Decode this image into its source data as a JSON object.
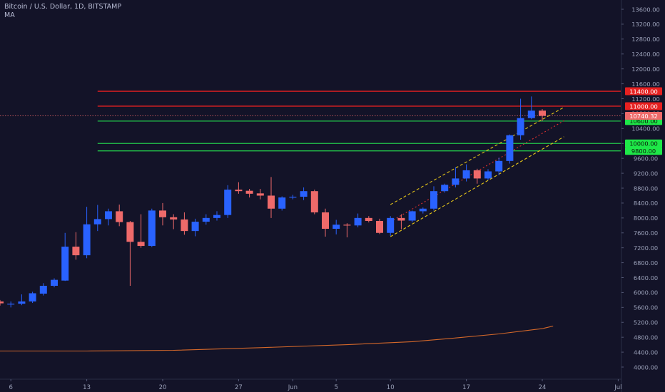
{
  "chart_header": {
    "title": "Bitcoin / U.S. Dollar, 1D, BITSTAMP",
    "indicator": "MA"
  },
  "colors": {
    "background": "#131328",
    "bullish": "#2962ff",
    "bearish": "#ef6a6a",
    "resistance": "#e62020",
    "support": "#22c44a",
    "channel": "#e6c619",
    "channel_mid": "#e03030",
    "ma": "#d4682a",
    "axis_text": "#9aa0b8"
  },
  "chart_data": {
    "type": "candlestick",
    "title": "Bitcoin / U.S. Dollar, 1D, BITSTAMP",
    "ylim": [
      3600,
      14000
    ],
    "y_ticks": [
      13600,
      13200,
      12800,
      12400,
      12000,
      11600,
      11200,
      10800,
      10400,
      10000,
      9600,
      9200,
      8800,
      8400,
      8000,
      7600,
      7200,
      6800,
      6400,
      6000,
      5600,
      5200,
      4800,
      4400,
      4000
    ],
    "y_tick_labels": [
      "13600.00",
      "13200.00",
      "12800.00",
      "12400.00",
      "12000.00",
      "11600.00",
      "11200.00",
      "10800.00",
      "10400.00",
      "10000.00",
      "9600.00",
      "9200.00",
      "8800.00",
      "8400.00",
      "8000.00",
      "7600.00",
      "7200.00",
      "6800.00",
      "6400.00",
      "6000.00",
      "5600.00",
      "5200.00",
      "4800.00",
      "4400.00",
      "4000.00"
    ],
    "x_ticks": [
      {
        "label": "6",
        "i": 1
      },
      {
        "label": "13",
        "i": 8
      },
      {
        "label": "20",
        "i": 15
      },
      {
        "label": "27",
        "i": 22
      },
      {
        "label": "Jun",
        "i": 27
      },
      {
        "label": "5",
        "i": 31
      },
      {
        "label": "10",
        "i": 36
      },
      {
        "label": "17",
        "i": 43
      },
      {
        "label": "24",
        "i": 50
      },
      {
        "label": "Jul",
        "i": 57
      }
    ],
    "candles": [
      {
        "o": 5760,
        "h": 5800,
        "l": 5650,
        "c": 5710
      },
      {
        "o": 5690,
        "h": 5760,
        "l": 5600,
        "c": 5700
      },
      {
        "o": 5700,
        "h": 5950,
        "l": 5660,
        "c": 5760
      },
      {
        "o": 5760,
        "h": 6020,
        "l": 5720,
        "c": 5980
      },
      {
        "o": 5970,
        "h": 6250,
        "l": 5920,
        "c": 6180
      },
      {
        "o": 6180,
        "h": 6380,
        "l": 6140,
        "c": 6340
      },
      {
        "o": 6320,
        "h": 7600,
        "l": 6310,
        "c": 7230
      },
      {
        "o": 7230,
        "h": 7620,
        "l": 6880,
        "c": 7000
      },
      {
        "o": 7000,
        "h": 8300,
        "l": 6920,
        "c": 7830
      },
      {
        "o": 7830,
        "h": 8350,
        "l": 7650,
        "c": 7970
      },
      {
        "o": 7970,
        "h": 8250,
        "l": 7800,
        "c": 8180
      },
      {
        "o": 8180,
        "h": 8360,
        "l": 7780,
        "c": 7890
      },
      {
        "o": 7890,
        "h": 7920,
        "l": 6180,
        "c": 7360
      },
      {
        "o": 7360,
        "h": 8100,
        "l": 7200,
        "c": 7250
      },
      {
        "o": 7250,
        "h": 8250,
        "l": 7220,
        "c": 8200
      },
      {
        "o": 8200,
        "h": 8400,
        "l": 7800,
        "c": 8020
      },
      {
        "o": 8020,
        "h": 8100,
        "l": 7700,
        "c": 7960
      },
      {
        "o": 7960,
        "h": 8150,
        "l": 7550,
        "c": 7650
      },
      {
        "o": 7650,
        "h": 7980,
        "l": 7510,
        "c": 7900
      },
      {
        "o": 7900,
        "h": 8100,
        "l": 7820,
        "c": 8000
      },
      {
        "o": 8000,
        "h": 8180,
        "l": 7930,
        "c": 8080
      },
      {
        "o": 8080,
        "h": 8880,
        "l": 8000,
        "c": 8760
      },
      {
        "o": 8760,
        "h": 8960,
        "l": 8650,
        "c": 8720
      },
      {
        "o": 8730,
        "h": 8780,
        "l": 8550,
        "c": 8650
      },
      {
        "o": 8660,
        "h": 8780,
        "l": 8500,
        "c": 8600
      },
      {
        "o": 8600,
        "h": 9100,
        "l": 8000,
        "c": 8250
      },
      {
        "o": 8250,
        "h": 8580,
        "l": 8200,
        "c": 8550
      },
      {
        "o": 8550,
        "h": 8620,
        "l": 8500,
        "c": 8570
      },
      {
        "o": 8570,
        "h": 8820,
        "l": 8480,
        "c": 8720
      },
      {
        "o": 8720,
        "h": 8760,
        "l": 8100,
        "c": 8150
      },
      {
        "o": 8150,
        "h": 8250,
        "l": 7500,
        "c": 7710
      },
      {
        "o": 7710,
        "h": 7950,
        "l": 7560,
        "c": 7820
      },
      {
        "o": 7820,
        "h": 7860,
        "l": 7480,
        "c": 7810
      },
      {
        "o": 7800,
        "h": 8120,
        "l": 7750,
        "c": 8000
      },
      {
        "o": 8000,
        "h": 8050,
        "l": 7880,
        "c": 7920
      },
      {
        "o": 7920,
        "h": 7980,
        "l": 7570,
        "c": 7600
      },
      {
        "o": 7600,
        "h": 8050,
        "l": 7520,
        "c": 8000
      },
      {
        "o": 8000,
        "h": 8100,
        "l": 7700,
        "c": 7930
      },
      {
        "o": 7930,
        "h": 8200,
        "l": 7880,
        "c": 8180
      },
      {
        "o": 8180,
        "h": 8280,
        "l": 8120,
        "c": 8250
      },
      {
        "o": 8250,
        "h": 8850,
        "l": 8200,
        "c": 8720
      },
      {
        "o": 8720,
        "h": 8920,
        "l": 8680,
        "c": 8890
      },
      {
        "o": 8890,
        "h": 9360,
        "l": 8820,
        "c": 9060
      },
      {
        "o": 9060,
        "h": 9440,
        "l": 8980,
        "c": 9280
      },
      {
        "o": 9280,
        "h": 9320,
        "l": 8920,
        "c": 9060
      },
      {
        "o": 9060,
        "h": 9310,
        "l": 9020,
        "c": 9250
      },
      {
        "o": 9250,
        "h": 9620,
        "l": 9150,
        "c": 9530
      },
      {
        "o": 9530,
        "h": 10240,
        "l": 9460,
        "c": 10220
      },
      {
        "o": 10220,
        "h": 11200,
        "l": 10100,
        "c": 10680
      },
      {
        "o": 10680,
        "h": 11260,
        "l": 10650,
        "c": 10880
      },
      {
        "o": 10880,
        "h": 10920,
        "l": 10600,
        "c": 10740
      }
    ],
    "horizontal_levels": [
      {
        "label": "11400.00",
        "value": 11400,
        "kind": "resistance"
      },
      {
        "label": "11000.00",
        "value": 11000,
        "kind": "resistance"
      },
      {
        "label": "10600.00",
        "value": 10600,
        "kind": "support"
      },
      {
        "label": "10000.00",
        "value": 10000,
        "kind": "support"
      },
      {
        "label": "9800.00",
        "value": 9800,
        "kind": "support"
      }
    ],
    "last_price": {
      "label": "10740.32",
      "value": 10740.32
    },
    "channel": {
      "upper": [
        [
          36,
          8360
        ],
        [
          52,
          10970
        ]
      ],
      "middle": [
        [
          36,
          7900
        ],
        [
          52,
          10610
        ]
      ],
      "lower": [
        [
          36,
          7500
        ],
        [
          52,
          10180
        ]
      ]
    },
    "moving_average": {
      "points": [
        [
          0,
          4430
        ],
        [
          8,
          4430
        ],
        [
          16,
          4450
        ],
        [
          24,
          4520
        ],
        [
          32,
          4600
        ],
        [
          38,
          4680
        ],
        [
          42,
          4780
        ],
        [
          46,
          4890
        ],
        [
          50,
          5030
        ],
        [
          51,
          5100
        ]
      ]
    }
  }
}
